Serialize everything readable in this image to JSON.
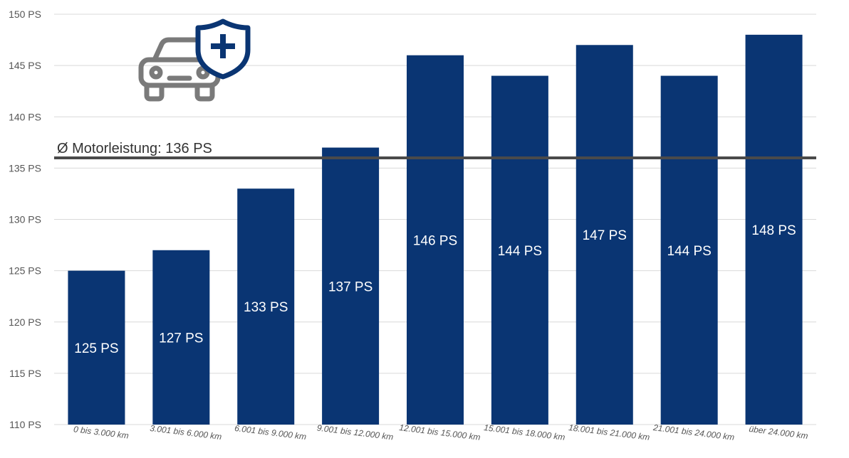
{
  "chart_data": {
    "type": "bar",
    "categories": [
      "0 bis 3.000 km",
      "3.001 bis 6.000 km",
      "6.001 bis 9.000 km",
      "9.001 bis 12.000 km",
      "12.001 bis 15.000 km",
      "15.001 bis 18.000 km",
      "18.001 bis 21.000 km",
      "21.001 bis 24.000 km",
      "über 24.000 km"
    ],
    "values": [
      125,
      127,
      133,
      137,
      146,
      144,
      147,
      144,
      148
    ],
    "data_labels": [
      "125 PS",
      "127 PS",
      "133 PS",
      "137 PS",
      "146 PS",
      "144 PS",
      "147 PS",
      "144 PS",
      "148 PS"
    ],
    "ylim": [
      110,
      150
    ],
    "yticks": [
      110,
      115,
      120,
      125,
      130,
      135,
      140,
      145,
      150
    ],
    "ytick_labels": [
      "110 PS",
      "115 PS",
      "120 PS",
      "125 PS",
      "130 PS",
      "135 PS",
      "140 PS",
      "145 PS",
      "150 PS"
    ],
    "reference_line": {
      "value": 136,
      "label": "Ø Motorleistung: 136 PS"
    },
    "grid": true,
    "bar_color": "#0a3573",
    "reference_line_color": "#4a4a4a",
    "logo_icon": "car-shield-plus-icon",
    "logo_colors": {
      "car": "#7a7a7a",
      "shield": "#0a3573"
    }
  }
}
